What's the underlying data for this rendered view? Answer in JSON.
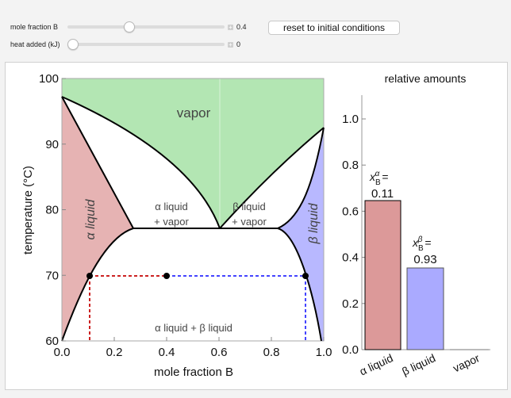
{
  "controls": {
    "mole_fraction": {
      "label": "mole fraction B",
      "value": "0.4",
      "fraction": 0.4
    },
    "heat_added": {
      "label": "heat added (kJ)",
      "value": "0",
      "fraction": 0.0
    },
    "reset_label": "reset to initial conditions"
  },
  "phase_diagram": {
    "xlabel": "mole fraction B",
    "ylabel": "temperature (°C)",
    "xticks": [
      "0.0",
      "0.2",
      "0.4",
      "0.6",
      "0.8",
      "1.0"
    ],
    "yticks": [
      "60",
      "70",
      "80",
      "90",
      "100"
    ],
    "regions": {
      "vapor": "vapor",
      "alpha_liquid": "α liquid",
      "beta_liquid": "β liquid",
      "alpha_vapor_1": "α liquid",
      "alpha_vapor_2": "+ vapor",
      "beta_vapor_1": "β liquid",
      "beta_vapor_2": "+ vapor",
      "two_liquid": "α liquid + β liquid"
    },
    "colors": {
      "vapor": "#b3e6b3",
      "alpha": "#e6b3b3",
      "beta": "#b3b3ff",
      "alpha_line": "#cc2222",
      "beta_line": "#4444ff"
    },
    "state": {
      "temperature": 70,
      "x_total": 0.4,
      "x_alpha": 0.11,
      "x_beta": 0.93
    }
  },
  "bar_chart": {
    "title": "relative amounts",
    "yticks": [
      "0.0",
      "0.2",
      "0.4",
      "0.6",
      "0.8",
      "1.0"
    ],
    "categories": [
      "α liquid",
      "β liquid",
      "vapor"
    ],
    "values": [
      0.646,
      0.354,
      0.0
    ],
    "colors": [
      "#dc9999",
      "#aaaaff",
      "#999999"
    ],
    "label_alpha_eq": "=",
    "label_alpha_value": "0.11",
    "label_beta_eq": "=",
    "label_beta_value": "0.93",
    "x_symbol": "x",
    "sub": "B",
    "sup_alpha": "α",
    "sup_beta": "β",
    "ylim": [
      0,
      1.1
    ]
  }
}
